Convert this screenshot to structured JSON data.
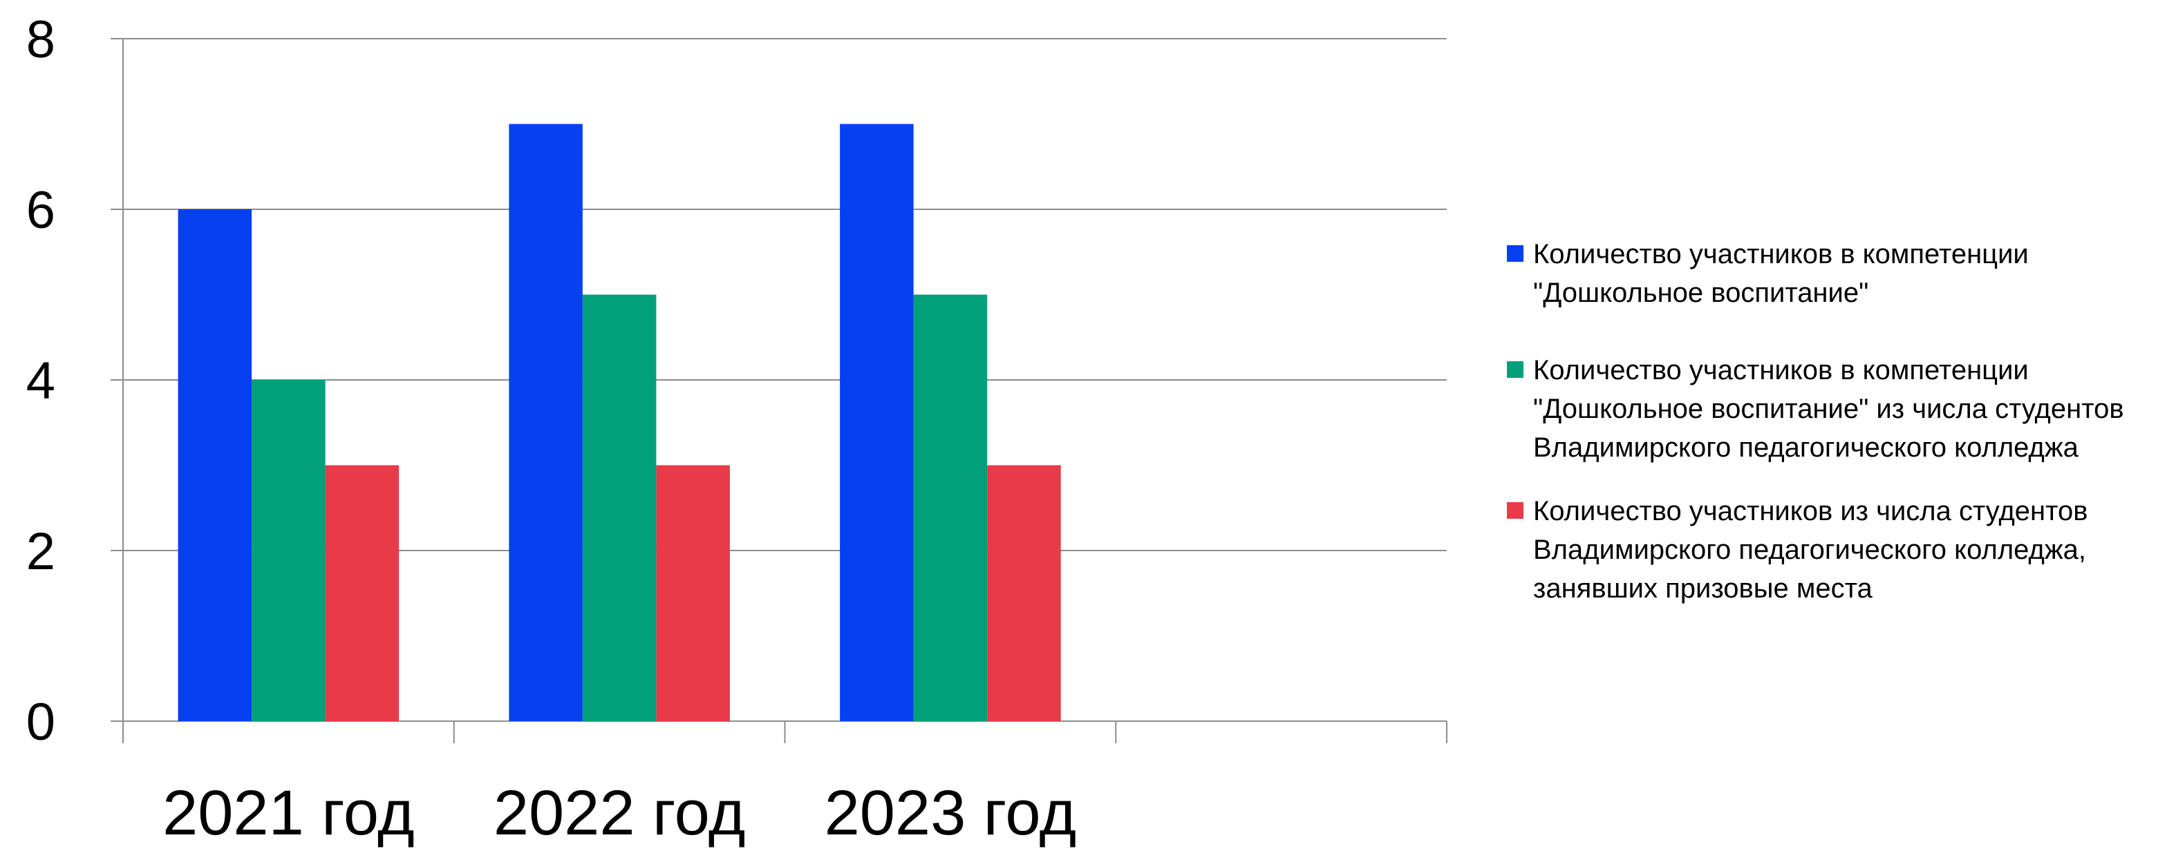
{
  "chart_data": {
    "type": "bar",
    "categories": [
      "2021 год",
      "2022 год",
      "2023 год",
      ""
    ],
    "series": [
      {
        "name": "Количество участников в компетенции \"Дошкольное воспитание\"",
        "values": [
          6,
          7,
          7,
          null
        ],
        "color": "#0740F0"
      },
      {
        "name": "Количество участников в компетенции \"Дошкольное воспитание\" из числа студентов Владимирского педагогического колледжа",
        "values": [
          4,
          5,
          5,
          null
        ],
        "color": "#00A07A"
      },
      {
        "name": "Количество участников из числа студентов Владимирского педагогического колледжа, занявших призовые места",
        "values": [
          3,
          3,
          3,
          null
        ],
        "color": "#E83A48"
      }
    ],
    "ylim": [
      0,
      8
    ],
    "yticks": [
      0,
      2,
      4,
      6,
      8
    ],
    "grid": true,
    "legend_position": "right",
    "title": "",
    "xlabel": "",
    "ylabel": ""
  }
}
